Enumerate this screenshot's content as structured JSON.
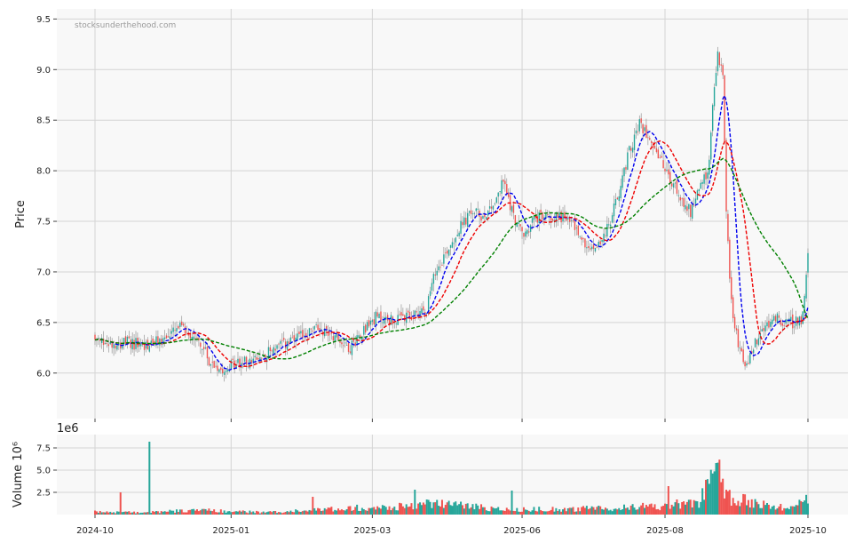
{
  "watermark": "stocksunderthehood.com",
  "chart_data": [
    {
      "type": "candlestick",
      "ylabel": "Price",
      "ylim": [
        5.55,
        9.6
      ],
      "y_ticks": [
        "6.0",
        "6.5",
        "7.0",
        "7.5",
        "8.0",
        "8.5",
        "9.0",
        "9.5"
      ],
      "x_ticks": [
        "2024-10",
        "2025-01",
        "2025-03",
        "2025-06",
        "2025-08",
        "2025-10"
      ],
      "grid": true,
      "up_color": "#26a69a",
      "down_color": "#ef5350",
      "anchor_close": [
        [
          0,
          6.31
        ],
        [
          10,
          6.3
        ],
        [
          20,
          6.3
        ],
        [
          30,
          6.27
        ],
        [
          40,
          6.33
        ],
        [
          50,
          6.45
        ],
        [
          60,
          6.35
        ],
        [
          68,
          6.1
        ],
        [
          75,
          6.05
        ],
        [
          85,
          6.1
        ],
        [
          95,
          6.12
        ],
        [
          105,
          6.25
        ],
        [
          115,
          6.3
        ],
        [
          125,
          6.4
        ],
        [
          130,
          6.45
        ],
        [
          140,
          6.38
        ],
        [
          150,
          6.25
        ],
        [
          157,
          6.42
        ],
        [
          165,
          6.55
        ],
        [
          175,
          6.52
        ],
        [
          185,
          6.55
        ],
        [
          195,
          6.65
        ],
        [
          200,
          7.0
        ],
        [
          208,
          7.25
        ],
        [
          215,
          7.45
        ],
        [
          222,
          7.6
        ],
        [
          228,
          7.55
        ],
        [
          235,
          7.7
        ],
        [
          240,
          7.9
        ],
        [
          246,
          7.55
        ],
        [
          252,
          7.35
        ],
        [
          258,
          7.52
        ],
        [
          265,
          7.55
        ],
        [
          275,
          7.55
        ],
        [
          282,
          7.45
        ],
        [
          290,
          7.2
        ],
        [
          297,
          7.3
        ],
        [
          302,
          7.45
        ],
        [
          308,
          7.8
        ],
        [
          314,
          8.2
        ],
        [
          320,
          8.45
        ],
        [
          326,
          8.35
        ],
        [
          331,
          8.15
        ],
        [
          338,
          7.9
        ],
        [
          344,
          7.75
        ],
        [
          350,
          7.6
        ],
        [
          355,
          7.85
        ],
        [
          360,
          7.95
        ],
        [
          363,
          8.6
        ],
        [
          366,
          9.15
        ],
        [
          369,
          8.95
        ],
        [
          371,
          7.55
        ],
        [
          374,
          6.7
        ],
        [
          378,
          6.3
        ],
        [
          383,
          6.05
        ],
        [
          388,
          6.3
        ],
        [
          394,
          6.45
        ],
        [
          400,
          6.55
        ],
        [
          406,
          6.5
        ],
        [
          412,
          6.5
        ],
        [
          416,
          6.55
        ],
        [
          419,
          7.15
        ]
      ],
      "anchor_volume_millions": [
        [
          0,
          0.3
        ],
        [
          30,
          0.25
        ],
        [
          60,
          0.5
        ],
        [
          100,
          0.25
        ],
        [
          130,
          0.5
        ],
        [
          150,
          0.8
        ],
        [
          175,
          0.8
        ],
        [
          200,
          1.3
        ],
        [
          240,
          0.6
        ],
        [
          280,
          0.6
        ],
        [
          310,
          0.8
        ],
        [
          335,
          1.0
        ],
        [
          355,
          1.5
        ],
        [
          362,
          3.5
        ],
        [
          366,
          5.5
        ],
        [
          370,
          2.0
        ],
        [
          390,
          1.2
        ],
        [
          410,
          0.7
        ],
        [
          419,
          2.1
        ]
      ],
      "volume_spikes_millions": [
        [
          15,
          2.5
        ],
        [
          32,
          8.2
        ],
        [
          128,
          2.0
        ],
        [
          188,
          2.8
        ],
        [
          245,
          2.7
        ],
        [
          337,
          3.2
        ],
        [
          365,
          5.8
        ]
      ],
      "moving_averages": [
        {
          "window": 10,
          "color": "#0000ee",
          "style": "dashed"
        },
        {
          "window": 20,
          "color": "#ee0000",
          "style": "dashed"
        },
        {
          "window": 50,
          "color": "#008000",
          "style": "dashed"
        }
      ]
    },
    {
      "type": "bar",
      "ylabel": "Volume  10⁶",
      "offset_label": "1e6",
      "ylim": [
        0,
        9
      ],
      "y_ticks": [
        "2.5",
        "5.0",
        "7.5"
      ],
      "x_ticks": [
        "2024-10",
        "2025-01",
        "2025-03",
        "2025-06",
        "2025-08",
        "2025-10"
      ]
    }
  ]
}
